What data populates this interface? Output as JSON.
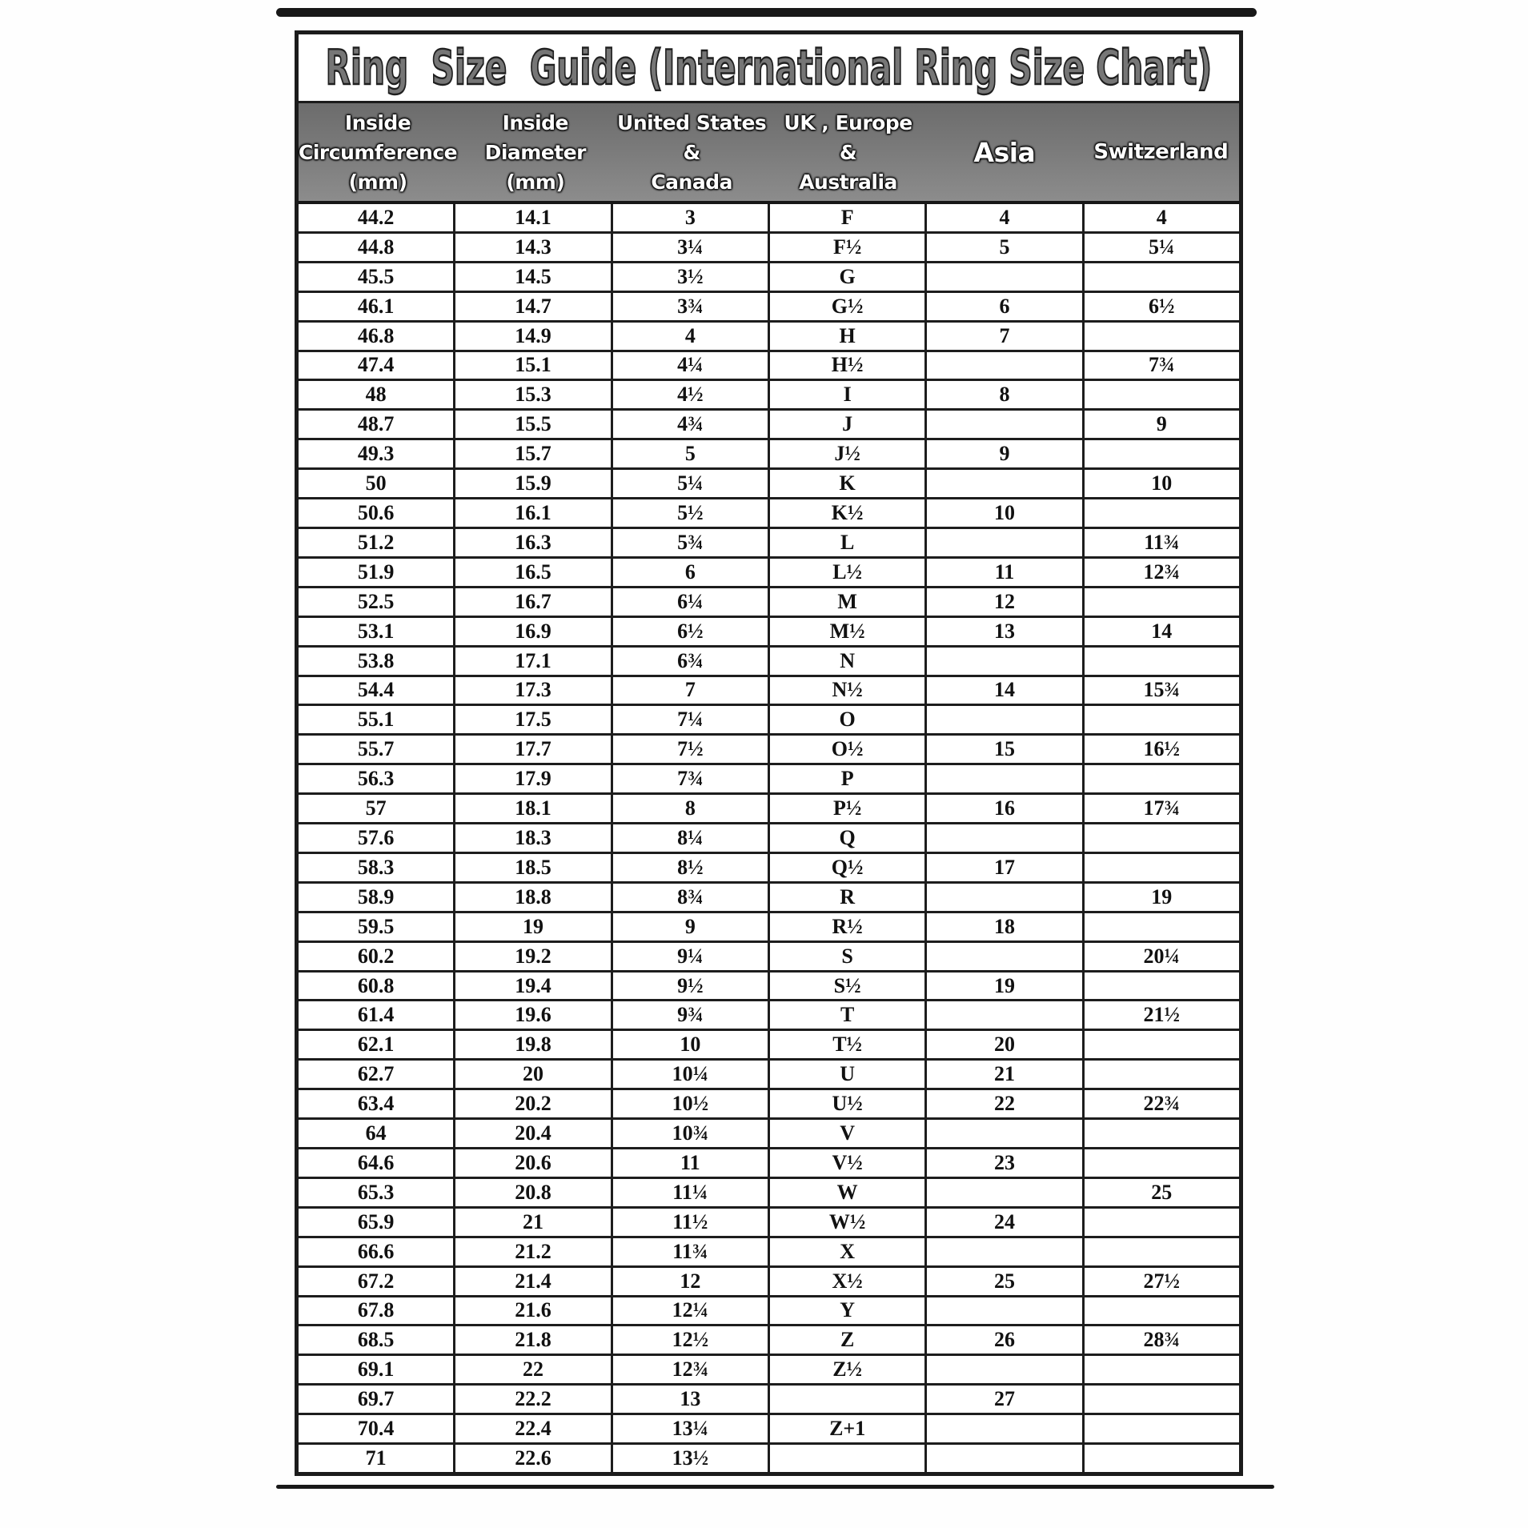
{
  "colors": {
    "paper": "#ffffff",
    "ink": "#1b1b1b",
    "header_band_top": "#6c6c6c",
    "header_band_bottom": "#8c8c8c",
    "header_text": "#ffffff",
    "title_fill": "#767676"
  },
  "chart_data": {
    "type": "table",
    "title": "Ring  Size  Guide (International Ring Size Chart)",
    "columns": [
      {
        "id": "inside-circumference",
        "label_lines": [
          "Inside",
          "Circumference",
          "(mm)"
        ]
      },
      {
        "id": "inside-diameter",
        "label_lines": [
          "Inside",
          "Diameter",
          "(mm)"
        ]
      },
      {
        "id": "us-canada",
        "label_lines": [
          "United States",
          "&",
          "Canada"
        ]
      },
      {
        "id": "uk-europe-australia",
        "label_lines": [
          "UK , Europe",
          "&",
          "Australia"
        ]
      },
      {
        "id": "asia",
        "label_lines": [
          "Asia"
        ]
      },
      {
        "id": "switzerland",
        "label_lines": [
          "Switzerland"
        ]
      }
    ],
    "rows": [
      [
        "44.2",
        "14.1",
        "3",
        "F",
        "4",
        "4"
      ],
      [
        "44.8",
        "14.3",
        "3¼",
        "F½",
        "5",
        "5¼"
      ],
      [
        "45.5",
        "14.5",
        "3½",
        "G",
        "",
        ""
      ],
      [
        "46.1",
        "14.7",
        "3¾",
        "G½",
        "6",
        "6½"
      ],
      [
        "46.8",
        "14.9",
        "4",
        "H",
        "7",
        ""
      ],
      [
        "47.4",
        "15.1",
        "4¼",
        "H½",
        "",
        "7¾"
      ],
      [
        "48",
        "15.3",
        "4½",
        "I",
        "8",
        ""
      ],
      [
        "48.7",
        "15.5",
        "4¾",
        "J",
        "",
        "9"
      ],
      [
        "49.3",
        "15.7",
        "5",
        "J½",
        "9",
        ""
      ],
      [
        "50",
        "15.9",
        "5¼",
        "K",
        "",
        "10"
      ],
      [
        "50.6",
        "16.1",
        "5½",
        "K½",
        "10",
        ""
      ],
      [
        "51.2",
        "16.3",
        "5¾",
        "L",
        "",
        "11¾"
      ],
      [
        "51.9",
        "16.5",
        "6",
        "L½",
        "11",
        "12¾"
      ],
      [
        "52.5",
        "16.7",
        "6¼",
        "M",
        "12",
        ""
      ],
      [
        "53.1",
        "16.9",
        "6½",
        "M½",
        "13",
        "14"
      ],
      [
        "53.8",
        "17.1",
        "6¾",
        "N",
        "",
        ""
      ],
      [
        "54.4",
        "17.3",
        "7",
        "N½",
        "14",
        "15¾"
      ],
      [
        "55.1",
        "17.5",
        "7¼",
        "O",
        "",
        ""
      ],
      [
        "55.7",
        "17.7",
        "7½",
        "O½",
        "15",
        "16½"
      ],
      [
        "56.3",
        "17.9",
        "7¾",
        "P",
        "",
        ""
      ],
      [
        "57",
        "18.1",
        "8",
        "P½",
        "16",
        "17¾"
      ],
      [
        "57.6",
        "18.3",
        "8¼",
        "Q",
        "",
        ""
      ],
      [
        "58.3",
        "18.5",
        "8½",
        "Q½",
        "17",
        ""
      ],
      [
        "58.9",
        "18.8",
        "8¾",
        "R",
        "",
        "19"
      ],
      [
        "59.5",
        "19",
        "9",
        "R½",
        "18",
        ""
      ],
      [
        "60.2",
        "19.2",
        "9¼",
        "S",
        "",
        "20¼"
      ],
      [
        "60.8",
        "19.4",
        "9½",
        "S½",
        "19",
        ""
      ],
      [
        "61.4",
        "19.6",
        "9¾",
        "T",
        "",
        "21½"
      ],
      [
        "62.1",
        "19.8",
        "10",
        "T½",
        "20",
        ""
      ],
      [
        "62.7",
        "20",
        "10¼",
        "U",
        "21",
        ""
      ],
      [
        "63.4",
        "20.2",
        "10½",
        "U½",
        "22",
        "22¾"
      ],
      [
        "64",
        "20.4",
        "10¾",
        "V",
        "",
        ""
      ],
      [
        "64.6",
        "20.6",
        "11",
        "V½",
        "23",
        ""
      ],
      [
        "65.3",
        "20.8",
        "11¼",
        "W",
        "",
        "25"
      ],
      [
        "65.9",
        "21",
        "11½",
        "W½",
        "24",
        ""
      ],
      [
        "66.6",
        "21.2",
        "11¾",
        "X",
        "",
        ""
      ],
      [
        "67.2",
        "21.4",
        "12",
        "X½",
        "25",
        "27½"
      ],
      [
        "67.8",
        "21.6",
        "12¼",
        "Y",
        "",
        ""
      ],
      [
        "68.5",
        "21.8",
        "12½",
        "Z",
        "26",
        "28¾"
      ],
      [
        "69.1",
        "22",
        "12¾",
        "Z½",
        "",
        ""
      ],
      [
        "69.7",
        "22.2",
        "13",
        "",
        "27",
        ""
      ],
      [
        "70.4",
        "22.4",
        "13¼",
        "Z+1",
        "",
        ""
      ],
      [
        "71",
        "22.6",
        "13½",
        "",
        "",
        ""
      ]
    ]
  }
}
